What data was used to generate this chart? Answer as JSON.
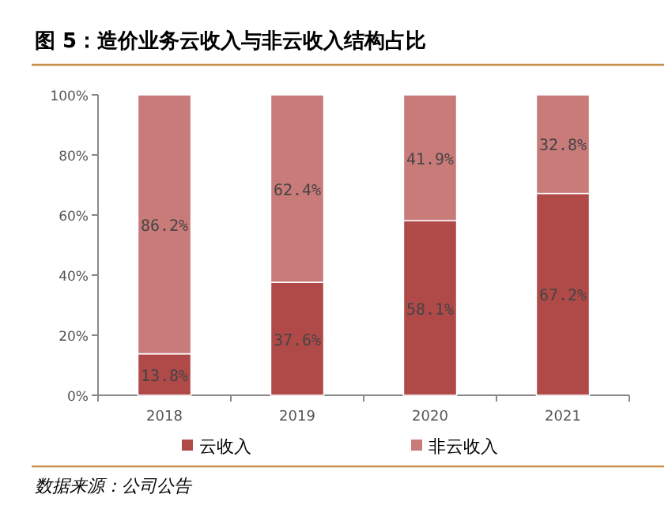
{
  "chart_data": {
    "type": "bar",
    "stacked": true,
    "title": "图 5：造价业务云收入与非云收入结构占比",
    "categories": [
      "2018",
      "2019",
      "2020",
      "2021"
    ],
    "series": [
      {
        "name": "云收入",
        "color": "#b04a48",
        "values": [
          13.8,
          37.6,
          58.1,
          67.2
        ],
        "value_labels": [
          "13.8%",
          "37.6%",
          "58.1%",
          "67.2%"
        ]
      },
      {
        "name": "非云收入",
        "color": "#c97b7a",
        "values": [
          86.2,
          62.4,
          41.9,
          32.8
        ],
        "value_labels": [
          "86.2%",
          "62.4%",
          "41.9%",
          "32.8%"
        ]
      }
    ],
    "ylim": [
      0,
      100
    ],
    "yticks": [
      {
        "value": 0,
        "label": "0%"
      },
      {
        "value": 20,
        "label": "20%"
      },
      {
        "value": 40,
        "label": "40%"
      },
      {
        "value": 60,
        "label": "60%"
      },
      {
        "value": 80,
        "label": "80%"
      },
      {
        "value": 100,
        "label": "100%"
      }
    ],
    "grid": false,
    "legend": "bottom",
    "annotations": [
      "数据来源：公司公告"
    ]
  }
}
